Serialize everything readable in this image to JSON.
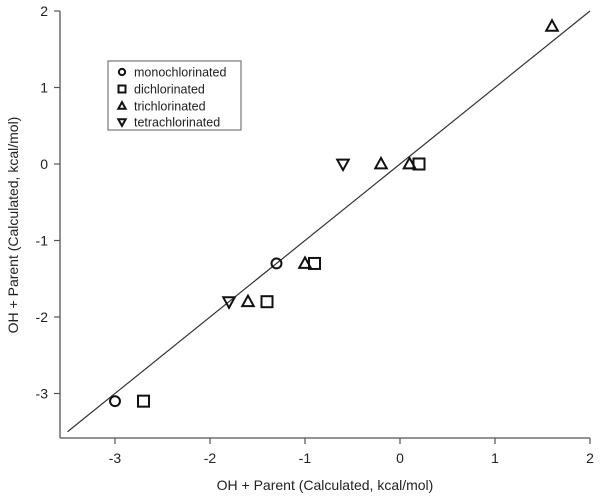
{
  "chart_data": {
    "type": "scatter",
    "title": "",
    "xlabel": "OH + Parent (Calculated, kcal/mol)",
    "ylabel": "OH + Parent (Calculated, kcal/mol)",
    "xlim": [
      -3.6,
      2.0
    ],
    "ylim": [
      -3.6,
      2.0
    ],
    "xticks": [
      -3,
      -2,
      -1,
      0,
      1,
      2
    ],
    "yticks": [
      -3,
      -2,
      -1,
      0,
      1,
      2
    ],
    "grid": false,
    "legend_position": "upper left",
    "reference_line": {
      "label": "y = x",
      "x": [
        -3.5,
        2.0
      ],
      "y": [
        -3.5,
        2.0
      ]
    },
    "series": [
      {
        "name": "monochlorinated",
        "marker": "circle",
        "points": [
          [
            -3.0,
            -3.1
          ],
          [
            -1.3,
            -1.3
          ]
        ]
      },
      {
        "name": "dichlorinated",
        "marker": "square",
        "points": [
          [
            -2.7,
            -3.1
          ],
          [
            -1.4,
            -1.8
          ],
          [
            -0.9,
            -1.3
          ],
          [
            0.2,
            0.0
          ]
        ]
      },
      {
        "name": "trichlorinated",
        "marker": "triangle-up",
        "points": [
          [
            -1.6,
            -1.8
          ],
          [
            -1.0,
            -1.3
          ],
          [
            -0.2,
            0.0
          ],
          [
            0.1,
            0.0
          ],
          [
            1.6,
            1.8
          ]
        ]
      },
      {
        "name": "tetrachlorinated",
        "marker": "triangle-down",
        "points": [
          [
            -1.8,
            -1.8
          ],
          [
            -0.6,
            0.0
          ]
        ]
      }
    ]
  },
  "axes": {
    "x_title": "OH + Parent (Calculated, kcal/mol)",
    "y_title": "OH + Parent (Calculated, kcal/mol)",
    "x_tick_labels": [
      "-3",
      "-2",
      "-1",
      "0",
      "1",
      "2"
    ],
    "y_tick_labels": [
      "2",
      "1",
      "0",
      "-1",
      "-2",
      "-3"
    ]
  },
  "legend": {
    "items": [
      {
        "label": "monochlorinated",
        "icon": "circle-icon"
      },
      {
        "label": "dichlorinated",
        "icon": "square-icon"
      },
      {
        "label": "trichlorinated",
        "icon": "triangle-up-icon"
      },
      {
        "label": "tetrachlorinated",
        "icon": "triangle-down-icon"
      }
    ]
  }
}
